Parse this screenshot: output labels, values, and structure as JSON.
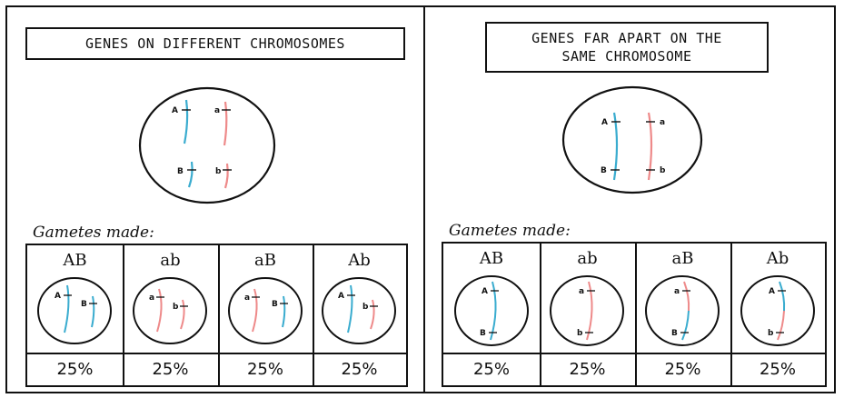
{
  "colors": {
    "blue": "#3aaccf",
    "red": "#ee8a8a",
    "ink": "#111111"
  },
  "left_panel": {
    "title_lines": [
      "GENES ON DIFFERENT CHROMOSOMES"
    ],
    "cell_labels": {
      "A": "A",
      "a": "a",
      "B": "B",
      "b": "b"
    },
    "gametes_label": "Gametes made:",
    "gametes": [
      {
        "genotype": "AB",
        "percent": "25%"
      },
      {
        "genotype": "ab",
        "percent": "25%"
      },
      {
        "genotype": "aB",
        "percent": "25%"
      },
      {
        "genotype": "Ab",
        "percent": "25%"
      }
    ]
  },
  "right_panel": {
    "title_lines": [
      "GENES FAR APART ON THE",
      "SAME CHROMOSOME"
    ],
    "cell_labels": {
      "A": "A",
      "a": "a",
      "B": "B",
      "b": "b"
    },
    "gametes_label": "Gametes made:",
    "gametes": [
      {
        "genotype": "AB",
        "percent": "25%"
      },
      {
        "genotype": "ab",
        "percent": "25%"
      },
      {
        "genotype": "aB",
        "percent": "25%"
      },
      {
        "genotype": "Ab",
        "percent": "25%"
      }
    ]
  }
}
